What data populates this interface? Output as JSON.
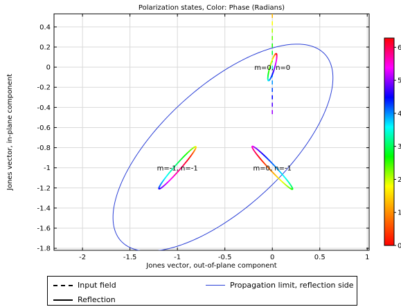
{
  "chart_data": {
    "type": "line",
    "title": "Polarization states, Color: Phase (Radians)",
    "xlabel": "Jones vector, out-of-plane component",
    "ylabel": "Jones vector, in-plane component",
    "xlim": [
      -2.3,
      1.02
    ],
    "ylim": [
      -1.82,
      0.53
    ],
    "x_ticks": [
      -2,
      -1.5,
      -1,
      -0.5,
      0,
      0.5,
      1
    ],
    "y_ticks": [
      0.4,
      0.2,
      0,
      -0.2,
      -0.4,
      -0.6,
      -0.8,
      -1,
      -1.2,
      -1.4,
      -1.6,
      -1.8
    ],
    "grid": true,
    "colorbar": {
      "range": [
        0,
        6.28
      ],
      "ticks": [
        "6",
        "5",
        "4",
        "3",
        "2",
        "1",
        "0"
      ],
      "colormap": [
        "#ff0000",
        "#ff7f00",
        "#ffff00",
        "#00ff00",
        "#00ffff",
        "#0000ff",
        "#ff00ff",
        "#ff0000"
      ]
    },
    "series": [
      {
        "name": "Input field",
        "style": "dashed",
        "points": [
          [
            0,
            0.53
          ],
          [
            0,
            -0.5
          ]
        ]
      },
      {
        "name": "Propagation limit, reflection side",
        "style": "solid",
        "color": "#2a3fd6",
        "ellipse": {
          "cx": -0.52,
          "cy": -0.8,
          "angle_deg": 40,
          "a": 1.42,
          "b": 0.62
        }
      },
      {
        "name": "Reflection",
        "style": "solid",
        "colored_by_phase": true,
        "ellipses": [
          {
            "cx": 0.0,
            "cy": 0.0,
            "angle_deg": 73,
            "a": 0.14,
            "b": 0.025
          },
          {
            "cx": -1.0,
            "cy": -1.0,
            "angle_deg": 47,
            "a": 0.285,
            "b": 0.03
          },
          {
            "cx": 0.0,
            "cy": -1.0,
            "angle_deg": -45,
            "a": 0.3,
            "b": 0.03
          }
        ]
      }
    ],
    "annotations": [
      {
        "text": "m=0, n=0",
        "x": 0.0,
        "y": 0.0
      },
      {
        "text": "m=-1, n=-1",
        "x": -1.0,
        "y": -1.0
      },
      {
        "text": "m=0, n=-1",
        "x": 0.0,
        "y": -1.0
      }
    ]
  },
  "legend": {
    "input": "Input field",
    "propagation": "Propagation limit, reflection side",
    "reflection": "Reflection",
    "propagation_color": "#2a3fd6"
  }
}
